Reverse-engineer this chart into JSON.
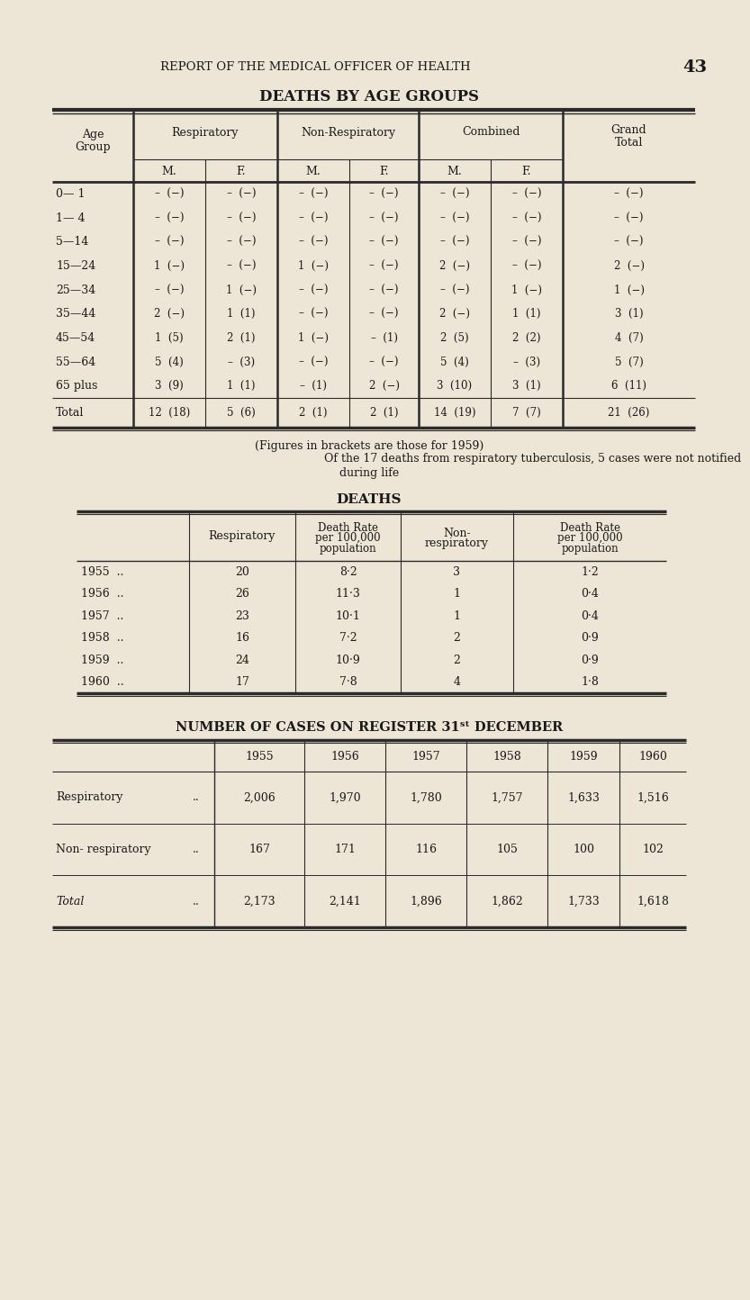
{
  "bg_color": "#ede5d5",
  "text_color": "#1a1a1a",
  "page_header": "REPORT OF THE MEDICAL OFFICER OF HEALTH",
  "page_number": "43",
  "table1_title": "DEATHS BY AGE GROUPS",
  "table1_rows": [
    [
      "0— 1",
      "–  (−)",
      "–  (−)",
      "–  (−)",
      "–  (−)",
      "–  (−)",
      "–  (−)",
      "–  (−)"
    ],
    [
      "1— 4",
      "–  (−)",
      "–  (−)",
      "–  (−)",
      "–  (−)",
      "–  (−)",
      "–  (−)",
      "–  (−)"
    ],
    [
      "5—14",
      "–  (−)",
      "–  (−)",
      "–  (−)",
      "–  (−)",
      "–  (−)",
      "–  (−)",
      "–  (−)"
    ],
    [
      "15—24",
      "1  (−)",
      "–  (−)",
      "1  (−)",
      "–  (−)",
      "2  (−)",
      "–  (−)",
      "2  (−)"
    ],
    [
      "25—34",
      "–  (−)",
      "1  (−)",
      "–  (−)",
      "–  (−)",
      "–  (−)",
      "1  (−)",
      "1  (−)"
    ],
    [
      "35—44",
      "2  (−)",
      "1  (1)",
      "–  (−)",
      "–  (−)",
      "2  (−)",
      "1  (1)",
      "3  (1)"
    ],
    [
      "45—54",
      "1  (5)",
      "2  (1)",
      "1  (−)",
      "–  (1)",
      "2  (5)",
      "2  (2)",
      "4  (7)"
    ],
    [
      "55—64",
      "5  (4)",
      "–  (3)",
      "–  (−)",
      "–  (−)",
      "5  (4)",
      "–  (3)",
      "5  (7)"
    ],
    [
      "65 plus",
      "3  (9)",
      "1  (1)",
      "–  (1)",
      "2  (−)",
      "3  (10)",
      "3  (1)",
      "6  (11)"
    ]
  ],
  "table1_total": [
    "Total",
    "12  (18)",
    "5  (6)",
    "2  (1)",
    "2  (1)",
    "14  (19)",
    "7  (7)",
    "21  (26)"
  ],
  "table1_note1": "(Figures in brackets are those for 1959)",
  "table1_note2": "Of the 17 deaths from respiratory tuberculosis, 5 cases were not notified",
  "table1_note3": "during life",
  "table2_title": "DEATHS",
  "table2_rows": [
    [
      "1955  ..",
      "20",
      "8·2",
      "3",
      "1·2"
    ],
    [
      "1956  ..",
      "26",
      "11·3",
      "1",
      "0·4"
    ],
    [
      "1957  ..",
      "23",
      "10·1",
      "1",
      "0·4"
    ],
    [
      "1958  ..",
      "16",
      "7·2",
      "2",
      "0·9"
    ],
    [
      "1959  ..",
      "24",
      "10·9",
      "2",
      "0·9"
    ],
    [
      "1960  ..",
      "17",
      "7·8",
      "4",
      "1·8"
    ]
  ],
  "table3_title": "NUMBER OF CASES ON REGISTER 31ˢᵗ DECEMBER",
  "table3_rows": [
    [
      "Respiratory",
      "..",
      "2,006",
      "1,970",
      "1,780",
      "1,757",
      "1,633",
      "1,516"
    ],
    [
      "Non- respiratory",
      "..",
      "167",
      "171",
      "116",
      "105",
      "100",
      "102"
    ],
    [
      "Total",
      "..",
      "2,173",
      "2,141",
      "1,896",
      "1,862",
      "1,733",
      "1,618"
    ]
  ],
  "years": [
    "1955",
    "1956",
    "1957",
    "1958",
    "1959",
    "1960"
  ]
}
